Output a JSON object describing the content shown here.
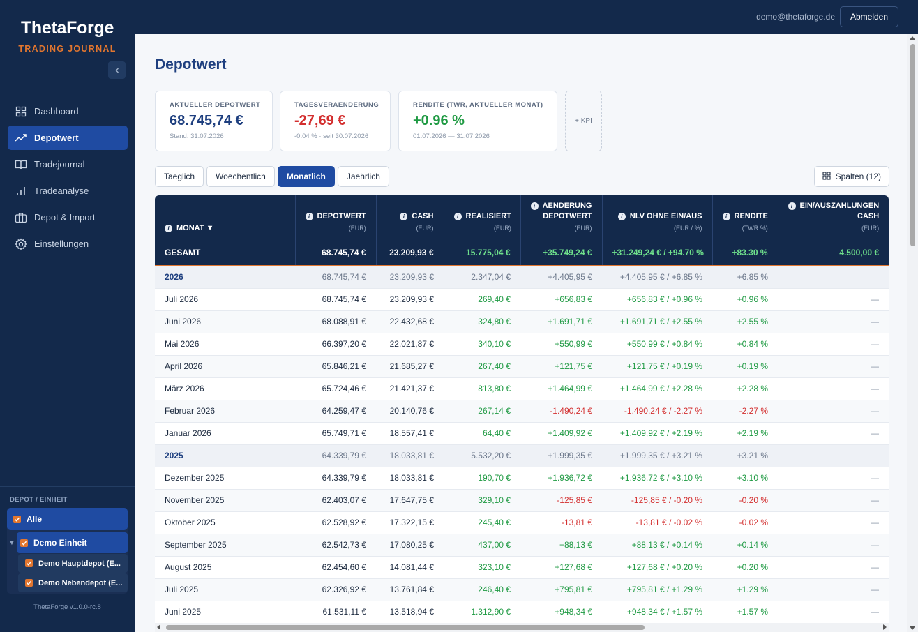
{
  "brand": {
    "name": "ThetaForge",
    "subtitle": "TRADING JOURNAL"
  },
  "nav": [
    {
      "label": "Dashboard",
      "icon": "dashboard-icon"
    },
    {
      "label": "Depotwert",
      "icon": "trend-icon",
      "active": true
    },
    {
      "label": "Tradejournal",
      "icon": "book-icon"
    },
    {
      "label": "Tradeanalyse",
      "icon": "bar-chart-icon"
    },
    {
      "label": "Depot & Import",
      "icon": "briefcase-icon"
    },
    {
      "label": "Einstellungen",
      "icon": "gear-icon"
    }
  ],
  "depot": {
    "title": "DEPOT / EINHEIT",
    "all": "Alle",
    "unit": "Demo Einheit",
    "subs": [
      "Demo Hauptdepot (E...",
      "Demo Nebendepot (E..."
    ]
  },
  "version": "ThetaForge v1.0.0-rc.8",
  "topbar": {
    "email": "demo@thetaforge.de",
    "logout": "Abmelden"
  },
  "page": {
    "title": "Depotwert"
  },
  "kpis": [
    {
      "label": "AKTUELLER DEPOTWERT",
      "value": "68.745,74 €",
      "sub": "Stand: 31.07.2026",
      "color": "#1e3f7f"
    },
    {
      "label": "TAGESVERAENDERUNG",
      "value": "-27,69 €",
      "sub": "-0.04 % · seit 30.07.2026",
      "color": "#d32f2f"
    },
    {
      "label": "RENDITE (TWR, AKTUELLER MONAT)",
      "value": "+0.96 %",
      "sub": "01.07.2026 — 31.07.2026",
      "color": "#1f9a43"
    }
  ],
  "kpi_add": "+ KPI",
  "tabs": [
    "Taeglich",
    "Woechentlich",
    "Monatlich",
    "Jaehrlich"
  ],
  "active_tab": "Monatlich",
  "columns_button": "Spalten (12)",
  "table": {
    "headers": [
      {
        "label": "MONAT ▼",
        "unit": ""
      },
      {
        "label": "DEPOTWERT",
        "unit": "(EUR)"
      },
      {
        "label": "CASH",
        "unit": "(EUR)"
      },
      {
        "label": "REALISIERT",
        "unit": "(EUR)"
      },
      {
        "label": "AENDERUNG DEPOTWERT",
        "unit": "(EUR)"
      },
      {
        "label": "NLV OHNE EIN/AUS",
        "unit": "(EUR / %)"
      },
      {
        "label": "RENDITE",
        "unit": "(TWR %)"
      },
      {
        "label": "EIN/AUSZAHLUNGEN CASH",
        "unit": "(EUR)"
      }
    ],
    "total": [
      "GESAMT",
      "68.745,74 €",
      "23.209,93 €",
      "15.775,04 €",
      "+35.749,24 €",
      "+31.249,24 € / +94.70 %",
      "+83.30 %",
      "4.500,00 €"
    ],
    "rows": [
      {
        "type": "year",
        "cells": [
          "2026",
          "68.745,74 €",
          "23.209,93 €",
          "2.347,04 €",
          "+4.405,95 €",
          "+4.405,95 € / +6.85 %",
          "+6.85 %",
          ""
        ]
      },
      {
        "type": "row",
        "cells": [
          "Juli 2026",
          "68.745,74 €",
          "23.209,93 €",
          "269,40 €",
          "+656,83 €",
          "+656,83 € / +0.96 %",
          "+0.96 %",
          "—"
        ]
      },
      {
        "type": "row",
        "cells": [
          "Juni 2026",
          "68.088,91 €",
          "22.432,68 €",
          "324,80 €",
          "+1.691,71 €",
          "+1.691,71 € / +2.55 %",
          "+2.55 %",
          "—"
        ]
      },
      {
        "type": "row",
        "cells": [
          "Mai 2026",
          "66.397,20 €",
          "22.021,87 €",
          "340,10 €",
          "+550,99 €",
          "+550,99 € / +0.84 %",
          "+0.84 %",
          "—"
        ]
      },
      {
        "type": "row",
        "cells": [
          "April 2026",
          "65.846,21 €",
          "21.685,27 €",
          "267,40 €",
          "+121,75 €",
          "+121,75 € / +0.19 %",
          "+0.19 %",
          "—"
        ]
      },
      {
        "type": "row",
        "cells": [
          "März 2026",
          "65.724,46 €",
          "21.421,37 €",
          "813,80 €",
          "+1.464,99 €",
          "+1.464,99 € / +2.28 %",
          "+2.28 %",
          "—"
        ]
      },
      {
        "type": "row",
        "cells": [
          "Februar 2026",
          "64.259,47 €",
          "20.140,76 €",
          "267,14 €",
          "-1.490,24 €",
          "-1.490,24 € / -2.27 %",
          "-2.27 %",
          "—"
        ]
      },
      {
        "type": "row",
        "cells": [
          "Januar 2026",
          "65.749,71 €",
          "18.557,41 €",
          "64,40 €",
          "+1.409,92 €",
          "+1.409,92 € / +2.19 %",
          "+2.19 %",
          "—"
        ]
      },
      {
        "type": "year",
        "cells": [
          "2025",
          "64.339,79 €",
          "18.033,81 €",
          "5.532,20 €",
          "+1.999,35 €",
          "+1.999,35 € / +3.21 %",
          "+3.21 %",
          ""
        ]
      },
      {
        "type": "row",
        "cells": [
          "Dezember 2025",
          "64.339,79 €",
          "18.033,81 €",
          "190,70 €",
          "+1.936,72 €",
          "+1.936,72 € / +3.10 %",
          "+3.10 %",
          "—"
        ]
      },
      {
        "type": "row",
        "cells": [
          "November 2025",
          "62.403,07 €",
          "17.647,75 €",
          "329,10 €",
          "-125,85 €",
          "-125,85 € / -0.20 %",
          "-0.20 %",
          "—"
        ]
      },
      {
        "type": "row",
        "cells": [
          "Oktober 2025",
          "62.528,92 €",
          "17.322,15 €",
          "245,40 €",
          "-13,81 €",
          "-13,81 € / -0.02 %",
          "-0.02 %",
          "—"
        ]
      },
      {
        "type": "row",
        "cells": [
          "September 2025",
          "62.542,73 €",
          "17.080,25 €",
          "437,00 €",
          "+88,13 €",
          "+88,13 € / +0.14 %",
          "+0.14 %",
          "—"
        ]
      },
      {
        "type": "row",
        "cells": [
          "August 2025",
          "62.454,60 €",
          "14.081,44 €",
          "323,10 €",
          "+127,68 €",
          "+127,68 € / +0.20 %",
          "+0.20 %",
          "—"
        ]
      },
      {
        "type": "row",
        "cells": [
          "Juli 2025",
          "62.326,92 €",
          "13.761,84 €",
          "246,40 €",
          "+795,81 €",
          "+795,81 € / +1.29 %",
          "+1.29 %",
          "—"
        ]
      },
      {
        "type": "row",
        "cells": [
          "Juni 2025",
          "61.531,11 €",
          "13.518,94 €",
          "1.312,90 €",
          "+948,34 €",
          "+948,34 € / +1.57 %",
          "+1.57 %",
          "—"
        ]
      }
    ]
  },
  "colors": {
    "navy": "#13294b",
    "accent": "#e2762f",
    "active": "#1f4ba2",
    "positive": "#1f9a43",
    "negative": "#d32f2f"
  }
}
